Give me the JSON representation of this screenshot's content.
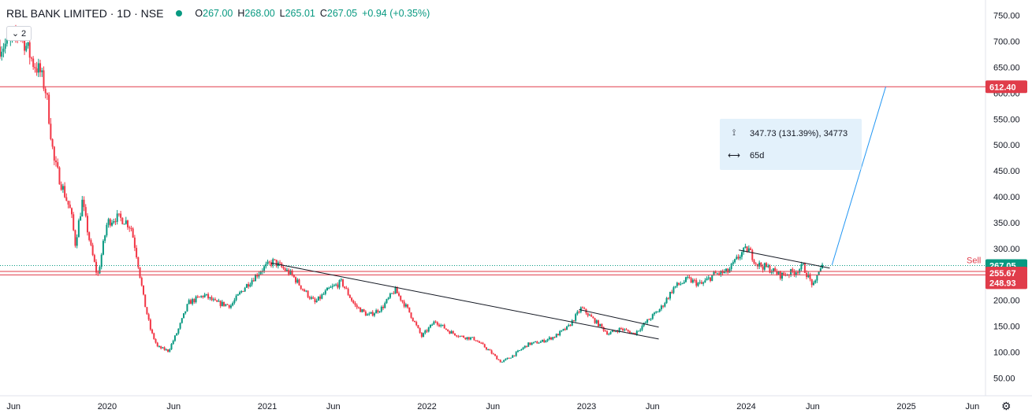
{
  "header": {
    "symbol": "RBL BANK LIMITED · 1D · NSE",
    "open_label": "O",
    "open": "267.00",
    "high_label": "H",
    "high": "268.00",
    "low_label": "L",
    "low": "265.01",
    "close_label": "C",
    "close": "267.05",
    "change": "+0.94 (+0.35%)"
  },
  "collapse_button": {
    "label": "2",
    "icon": "chevron-down-icon"
  },
  "measure_tooltip": {
    "price_range": "347.73 (131.39%), 34773",
    "duration": "65d",
    "price_icon": "range-vertical-icon",
    "time_icon": "range-horizontal-icon"
  },
  "colors": {
    "up": "#089981",
    "down": "#f23645",
    "level": "#e03c4a",
    "measure": "#2196f3",
    "trend": "#131722"
  },
  "chart_data": {
    "type": "candlestick",
    "title": "RBL BANK LIMITED · 1D · NSE",
    "ylim": [
      20,
      780
    ],
    "y_ticks": [
      50,
      100,
      150,
      200,
      250,
      300,
      350,
      400,
      450,
      500,
      550,
      600,
      650,
      700,
      750
    ],
    "y_tick_labels": [
      "50.00",
      "100.00",
      "150.00",
      "200.00",
      "250.00",
      "300.00",
      "350.00",
      "400.00",
      "450.00",
      "500.00",
      "550.00",
      "600.00",
      "650.00",
      "700.00",
      "750.00"
    ],
    "x_range": [
      "2019-05-01",
      "2025-07-01"
    ],
    "x_ticks": [
      {
        "label": "Jun",
        "date": "2019-06-01"
      },
      {
        "label": "2020",
        "date": "2020-01-01"
      },
      {
        "label": "Jun",
        "date": "2020-06-01"
      },
      {
        "label": "2021",
        "date": "2021-01-01"
      },
      {
        "label": "Jun",
        "date": "2021-06-01"
      },
      {
        "label": "2022",
        "date": "2022-01-01"
      },
      {
        "label": "Jun",
        "date": "2022-06-01"
      },
      {
        "label": "2023",
        "date": "2023-01-01"
      },
      {
        "label": "Jun",
        "date": "2023-06-01"
      },
      {
        "label": "2024",
        "date": "2024-01-01"
      },
      {
        "label": "Jun",
        "date": "2024-06-01"
      },
      {
        "label": "2025",
        "date": "2025-01-01"
      },
      {
        "label": "Jun",
        "date": "2025-06-01"
      }
    ],
    "price_path": [
      [
        "2019-05-01",
        690
      ],
      [
        "2019-06-01",
        700
      ],
      [
        "2019-06-15",
        722
      ],
      [
        "2019-07-15",
        660
      ],
      [
        "2019-08-01",
        640
      ],
      [
        "2019-08-15",
        600
      ],
      [
        "2019-09-01",
        470
      ],
      [
        "2019-09-20",
        420
      ],
      [
        "2019-10-10",
        370
      ],
      [
        "2019-10-20",
        310
      ],
      [
        "2019-11-05",
        390
      ],
      [
        "2019-11-25",
        300
      ],
      [
        "2019-12-10",
        245
      ],
      [
        "2020-01-01",
        350
      ],
      [
        "2020-01-20",
        360
      ],
      [
        "2020-02-10",
        355
      ],
      [
        "2020-02-25",
        340
      ],
      [
        "2020-03-10",
        280
      ],
      [
        "2020-03-25",
        200
      ],
      [
        "2020-04-10",
        140
      ],
      [
        "2020-04-25",
        110
      ],
      [
        "2020-05-20",
        102
      ],
      [
        "2020-06-10",
        140
      ],
      [
        "2020-07-05",
        195
      ],
      [
        "2020-08-10",
        210
      ],
      [
        "2020-09-05",
        195
      ],
      [
        "2020-10-10",
        190
      ],
      [
        "2020-11-10",
        225
      ],
      [
        "2020-12-20",
        260
      ],
      [
        "2021-01-15",
        275
      ],
      [
        "2021-02-05",
        262
      ],
      [
        "2021-02-25",
        250
      ],
      [
        "2021-03-25",
        220
      ],
      [
        "2021-04-20",
        195
      ],
      [
        "2021-05-20",
        220
      ],
      [
        "2021-06-20",
        235
      ],
      [
        "2021-07-20",
        190
      ],
      [
        "2021-08-20",
        170
      ],
      [
        "2021-09-20",
        185
      ],
      [
        "2021-10-20",
        220
      ],
      [
        "2021-11-20",
        180
      ],
      [
        "2021-12-20",
        130
      ],
      [
        "2022-01-20",
        160
      ],
      [
        "2022-02-20",
        140
      ],
      [
        "2022-03-20",
        130
      ],
      [
        "2022-04-20",
        125
      ],
      [
        "2022-05-20",
        105
      ],
      [
        "2022-06-20",
        80
      ],
      [
        "2022-07-20",
        95
      ],
      [
        "2022-08-20",
        115
      ],
      [
        "2022-09-20",
        120
      ],
      [
        "2022-10-20",
        130
      ],
      [
        "2022-11-20",
        148
      ],
      [
        "2022-12-20",
        185
      ],
      [
        "2023-01-20",
        160
      ],
      [
        "2023-02-20",
        135
      ],
      [
        "2023-03-20",
        145
      ],
      [
        "2023-04-20",
        135
      ],
      [
        "2023-05-20",
        160
      ],
      [
        "2023-06-20",
        185
      ],
      [
        "2023-07-20",
        225
      ],
      [
        "2023-08-20",
        240
      ],
      [
        "2023-09-20",
        230
      ],
      [
        "2023-10-20",
        250
      ],
      [
        "2023-11-20",
        255
      ],
      [
        "2023-12-20",
        290
      ],
      [
        "2024-01-05",
        300
      ],
      [
        "2024-01-25",
        270
      ],
      [
        "2024-02-20",
        262
      ],
      [
        "2024-03-20",
        248
      ],
      [
        "2024-04-20",
        255
      ],
      [
        "2024-05-10",
        265
      ],
      [
        "2024-05-25",
        240
      ],
      [
        "2024-06-05",
        225
      ],
      [
        "2024-06-15",
        260
      ],
      [
        "2024-06-25",
        267.05
      ]
    ],
    "last_price": 267.05,
    "price_labels": [
      {
        "value": 612.4,
        "text": "612.40"
      },
      {
        "value": 267.05,
        "text": "267.05"
      },
      {
        "value": 255.67,
        "text": "255.67"
      },
      {
        "value": 248.93,
        "text": "248.93"
      }
    ],
    "horizontal_levels": [
      612.4,
      255.67,
      248.93
    ],
    "sell_label": "Sell",
    "trendlines": [
      {
        "from": [
          "2021-01-10",
          272
        ],
        "to": [
          "2023-06-15",
          125
        ]
      },
      {
        "from": [
          "2022-12-15",
          182
        ],
        "to": [
          "2023-06-15",
          148
        ]
      },
      {
        "from": [
          "2023-12-15",
          297
        ],
        "to": [
          "2024-07-10",
          262
        ]
      }
    ],
    "projection_line": {
      "from": [
        "2024-07-15",
        268
      ],
      "to": [
        "2024-11-15",
        612.4
      ]
    }
  }
}
